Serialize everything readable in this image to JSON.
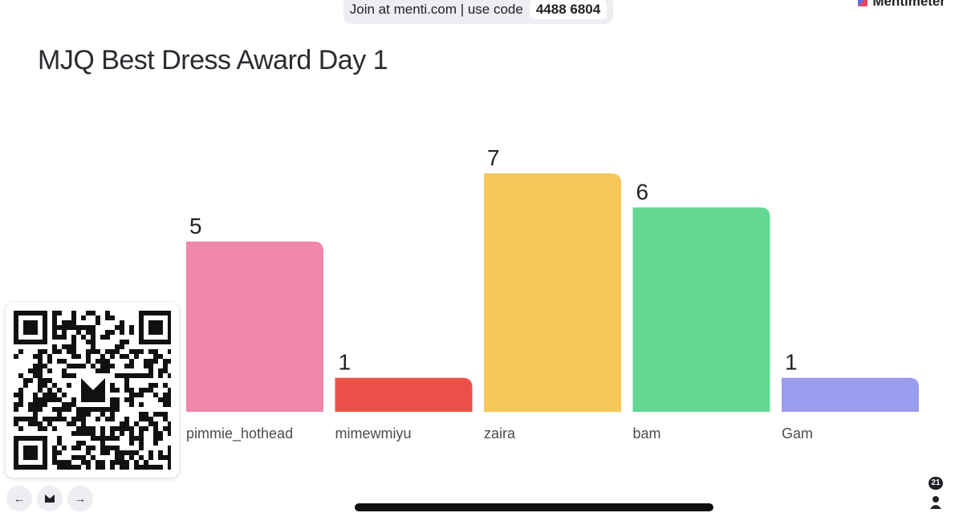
{
  "banner": {
    "text": "Join at menti.com | use code",
    "code": "4488 6804"
  },
  "brand": {
    "name": "Mentimeter"
  },
  "slide": {
    "title": "MJQ Best Dress Award Day 1"
  },
  "chart_data": {
    "type": "bar",
    "title": "MJQ Best Dress Award Day 1",
    "categories": [
      "pimmie_hothead",
      "mimewmiyu",
      "zaira",
      "bam",
      "Gam"
    ],
    "values": [
      5,
      1,
      7,
      6,
      1
    ],
    "colors": [
      "#f087a8",
      "#eb5149",
      "#f5c757",
      "#62d893",
      "#9a9ded"
    ],
    "grid": false,
    "ylim": [
      0,
      7
    ]
  },
  "participants": {
    "count": "21"
  },
  "nav": {
    "prev": "←",
    "next": "→"
  }
}
